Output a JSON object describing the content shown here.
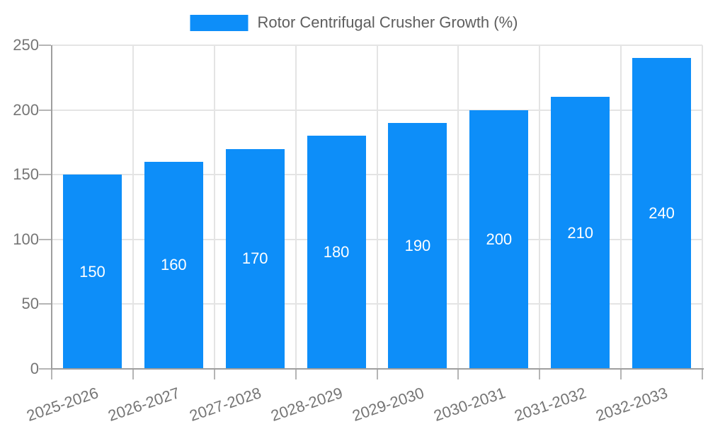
{
  "legend": {
    "label": "Rotor Centrifugal Crusher Growth (%)",
    "swatch_color": "#0d8ef9"
  },
  "chart_data": {
    "type": "bar",
    "title": "Rotor Centrifugal Crusher Growth (%)",
    "categories": [
      "2025-2026",
      "2026-2027",
      "2027-2028",
      "2028-2029",
      "2029-2030",
      "2030-2031",
      "2031-2032",
      "2032-2033"
    ],
    "values": [
      150,
      160,
      170,
      180,
      190,
      200,
      210,
      240
    ],
    "xlabel": "",
    "ylabel": "",
    "ylim": [
      0,
      250
    ],
    "yticks": [
      0,
      50,
      100,
      150,
      200,
      250
    ],
    "grid": "horizontal and vertical light gray gridlines",
    "legend_position": "top-center",
    "bar_color": "#0d8ef9",
    "bar_label_color": "#ffffff",
    "axis_line_color": "#9e9e9e",
    "gridline_color": "#e4e4e4",
    "axis_text_color": "#757575",
    "x_label_rotation_deg": -19
  }
}
